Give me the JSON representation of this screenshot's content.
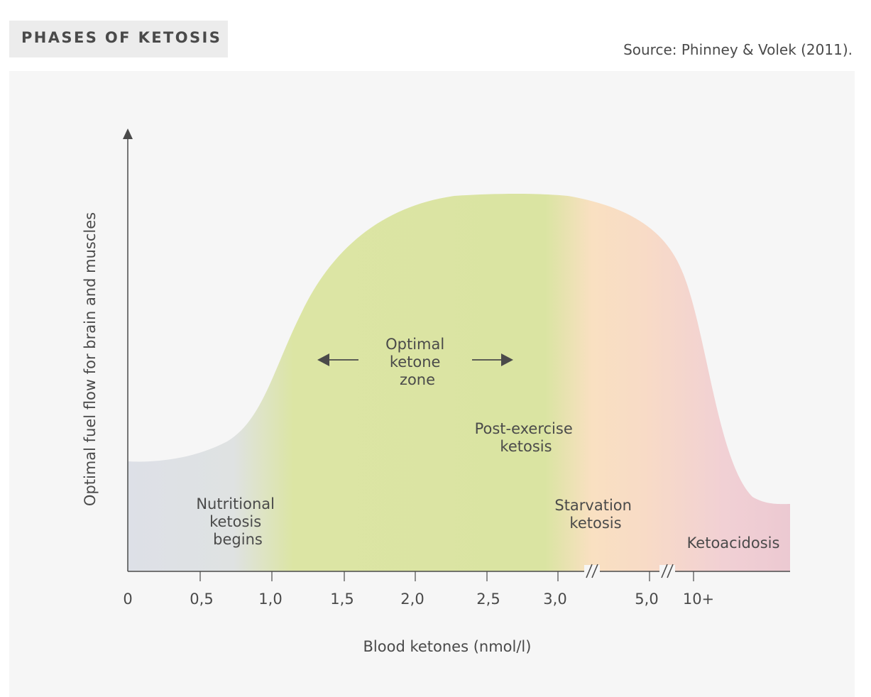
{
  "header": {
    "title": "PHASES OF KETOSIS",
    "source": "Source: Phinney & Volek (2011)."
  },
  "chart_data": {
    "type": "area",
    "title": "PHASES OF KETOSIS",
    "xlabel": "Blood ketones (nmol/l)",
    "ylabel": "Optimal fuel flow for brain and muscles",
    "x_ticks": [
      "0",
      "0,5",
      "1,0",
      "1,5",
      "2,0",
      "2,5",
      "3,0",
      "5,0",
      "10+"
    ],
    "axis_breaks": [
      "between 3,0 and 5,0",
      "between 5,0 and 10+"
    ],
    "y_scale": "qualitative (no tick values)",
    "grid": false,
    "curve_shape": "low plateau from 0 to about 0,5, rises steeply between 1,0 and 1,5, broad maximum from about 2,0 to 3,0, declines through starvation ketosis, falls to a low plateau beyond 10+",
    "zones": [
      {
        "name": "Nutritional ketosis begins",
        "color": "#dde0e6"
      },
      {
        "name": "Optimal ketone zone",
        "color": "#dbe4a3"
      },
      {
        "name": "Post-exercise ketosis",
        "color": "#dbe4a3"
      },
      {
        "name": "Starvation ketosis",
        "color": "#f8ddc0"
      },
      {
        "name": "Ketoacidosis",
        "color": "#efcfd4"
      }
    ],
    "annotations": [
      {
        "lines": [
          "Nutritional",
          "ketosis",
          "begins"
        ]
      },
      {
        "lines": [
          "Optimal",
          "ketone",
          "zone"
        ],
        "arrows": "left and right"
      },
      {
        "lines": [
          "Post-exercise",
          "ketosis"
        ]
      },
      {
        "lines": [
          "Starvation",
          "ketosis"
        ]
      },
      {
        "lines": [
          "Ketoacidosis"
        ]
      }
    ]
  }
}
